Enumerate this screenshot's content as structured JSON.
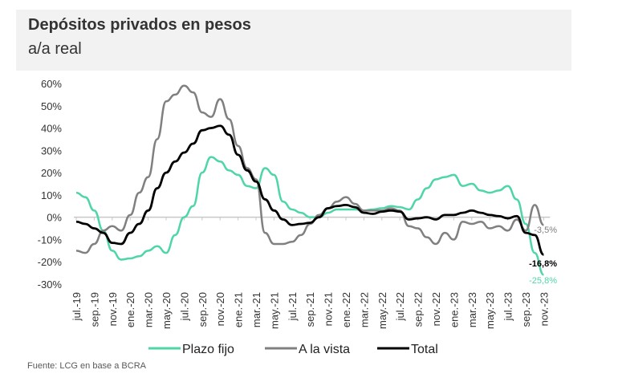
{
  "header": {
    "title": "Depósitos privados en pesos",
    "subtitle": "a/a real"
  },
  "source": "Fuente: LCG en base a BCRA",
  "chart_data": {
    "type": "line",
    "title": "Depósitos privados en pesos",
    "subtitle": "a/a real",
    "xlabel": "",
    "ylabel": "",
    "ylim": [
      -30,
      60
    ],
    "yticks": [
      60,
      50,
      40,
      30,
      20,
      10,
      0,
      -10,
      -20,
      -30
    ],
    "ytick_labels": [
      "60%",
      "50%",
      "40%",
      "30%",
      "20%",
      "10%",
      "0%",
      "-10%",
      "-20%",
      "-30%"
    ],
    "x_tick_labels": [
      "jul.-19",
      "sep.-19",
      "nov.-19",
      "ene.-20",
      "mar.-20",
      "may.-20",
      "jul.-20",
      "sep.-20",
      "nov.-20",
      "ene.-21",
      "mar.-21",
      "may.-21",
      "jul.-21",
      "sep.-21",
      "nov.-21",
      "ene.-22",
      "mar.-22",
      "may.-22",
      "jul.-22",
      "sep.-22",
      "nov.-22",
      "ene.-23",
      "mar.-23",
      "may.-23",
      "jul.-23",
      "sep.-23",
      "nov.-23"
    ],
    "x_period": "monthly jul-2019 to nov-2023",
    "legend_position": "bottom",
    "series": [
      {
        "name": "Plazo fijo",
        "color": "#4fd6a6",
        "end_label": "-25,8%",
        "values": [
          11,
          9,
          3,
          -6,
          -15,
          -19,
          -18.5,
          -17.5,
          -15,
          -13,
          -16,
          -8,
          0,
          5,
          20,
          27,
          25,
          21,
          19,
          14,
          13,
          22,
          19,
          7,
          3.5,
          2,
          0,
          0,
          2,
          3.5,
          3.5,
          3.5,
          3,
          3.5,
          4,
          5,
          4.5,
          3.5,
          8,
          13,
          17,
          18,
          19,
          14,
          15,
          12,
          11,
          12,
          14,
          8,
          -3,
          -16,
          -25.8
        ]
      },
      {
        "name": "A la vista",
        "color": "#808080",
        "end_label": "-3,5%",
        "values": [
          -15,
          -16,
          -12,
          -6,
          -4,
          -6,
          1,
          11,
          18,
          35,
          52,
          55,
          59,
          56,
          47,
          45,
          53,
          44,
          32,
          22,
          17,
          -7,
          -12,
          -12,
          -11,
          -8,
          -3,
          1,
          4,
          7,
          9,
          6,
          3,
          3,
          3,
          4,
          3,
          -4,
          -5,
          -9,
          -12,
          -7,
          -10,
          -2,
          -3,
          -2,
          -5,
          -4,
          -6,
          -1,
          -6,
          5.5,
          -3.5
        ]
      },
      {
        "name": "Total",
        "color": "#000000",
        "end_label": "-16,8%",
        "values": [
          -2,
          -3,
          -5,
          -7,
          -11.5,
          -12,
          -7,
          -3,
          3,
          13,
          20,
          25,
          29,
          33,
          39,
          40,
          41,
          37,
          28,
          21,
          16,
          8,
          3,
          -1,
          -3.5,
          -3,
          -2.5,
          0,
          4,
          5,
          5.5,
          4.5,
          2,
          1.5,
          2.5,
          3,
          2.5,
          -1,
          -0.5,
          0,
          -1,
          1,
          1,
          2,
          3,
          2,
          1,
          0.5,
          -0.5,
          0.5,
          -7,
          -8,
          -16.8
        ]
      }
    ]
  }
}
